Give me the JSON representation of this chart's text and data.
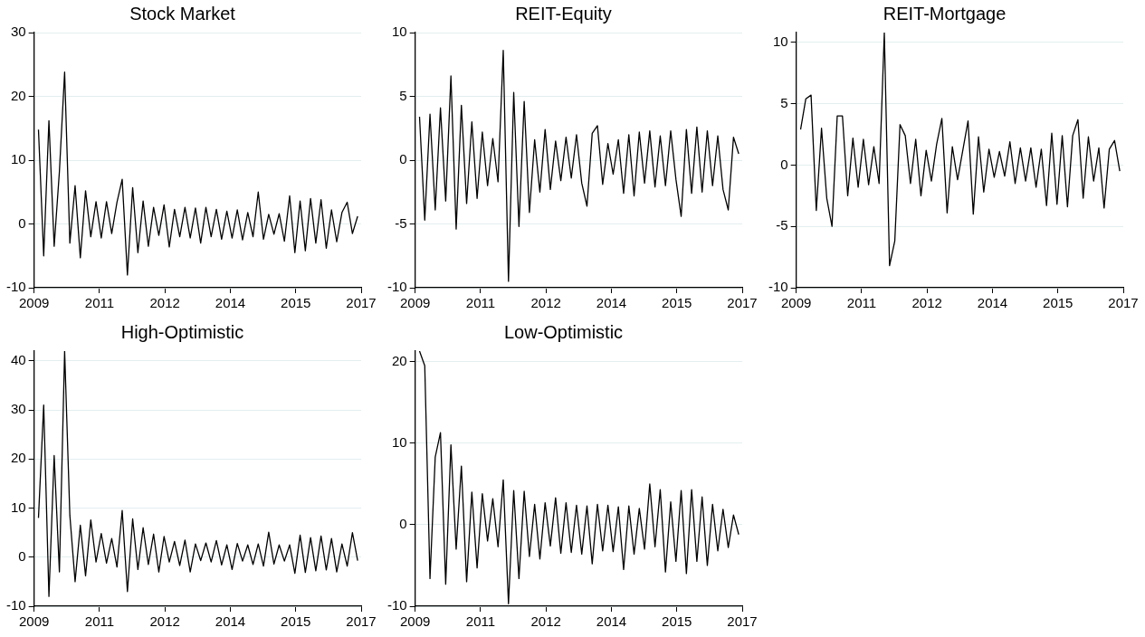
{
  "chart_data": [
    {
      "type": "line",
      "title": "Stock Market",
      "color": "#000000",
      "grid": "y",
      "xlim": [
        2009.2,
        2016.7
      ],
      "ylim": [
        -10,
        30
      ],
      "yticks": [
        -10,
        0,
        10,
        20,
        30
      ],
      "xticks": [
        {
          "value": 2009.2,
          "label": "2009"
        },
        {
          "value": 2010.7,
          "label": "2011"
        },
        {
          "value": 2012.2,
          "label": "2012"
        },
        {
          "value": 2013.7,
          "label": "2014"
        },
        {
          "value": 2015.2,
          "label": "2015"
        },
        {
          "value": 2016.7,
          "label": "2017"
        }
      ],
      "x": [
        2009.3,
        2009.42,
        2009.54,
        2009.66,
        2009.78,
        2009.9,
        2010.02,
        2010.14,
        2010.26,
        2010.38,
        2010.5,
        2010.62,
        2010.74,
        2010.86,
        2010.98,
        2011.1,
        2011.22,
        2011.34,
        2011.46,
        2011.58,
        2011.7,
        2011.82,
        2011.94,
        2012.06,
        2012.18,
        2012.3,
        2012.42,
        2012.54,
        2012.66,
        2012.78,
        2012.9,
        2013.02,
        2013.14,
        2013.26,
        2013.38,
        2013.5,
        2013.62,
        2013.74,
        2013.86,
        2013.98,
        2014.1,
        2014.22,
        2014.34,
        2014.46,
        2014.58,
        2014.7,
        2014.82,
        2014.94,
        2015.06,
        2015.18,
        2015.3,
        2015.42,
        2015.54,
        2015.66,
        2015.78,
        2015.9,
        2016.02,
        2016.14,
        2016.26,
        2016.38,
        2016.5,
        2016.62
      ],
      "values": [
        14.8,
        -5,
        16.2,
        -3.5,
        8.2,
        23.8,
        -3,
        6,
        -5.3,
        5.2,
        -2,
        3.5,
        -2.2,
        3.5,
        -1.5,
        3.4,
        7,
        -8,
        5.7,
        -4.5,
        3.6,
        -3.5,
        2.6,
        -1.8,
        3,
        -3.6,
        2.3,
        -2,
        2.6,
        -2.2,
        2.5,
        -3,
        2.6,
        -2,
        2.3,
        -2.4,
        2,
        -2.2,
        2.2,
        -2.5,
        1.8,
        -2,
        5,
        -2.4,
        1.5,
        -1.6,
        1.6,
        -2.7,
        4.4,
        -4.5,
        3.6,
        -4.2,
        4,
        -3,
        3.8,
        -3.8,
        2.2,
        -2.8,
        1.8,
        3.4,
        -1.5,
        1.2
      ]
    },
    {
      "type": "line",
      "title": "REIT-Equity",
      "color": "#000000",
      "grid": "y",
      "xlim": [
        2009.2,
        2016.7
      ],
      "ylim": [
        -10,
        10
      ],
      "yticks": [
        -10,
        -5,
        0,
        5,
        10
      ],
      "xticks": [
        {
          "value": 2009.2,
          "label": "2009"
        },
        {
          "value": 2010.7,
          "label": "2011"
        },
        {
          "value": 2012.2,
          "label": "2012"
        },
        {
          "value": 2013.7,
          "label": "2014"
        },
        {
          "value": 2015.2,
          "label": "2015"
        },
        {
          "value": 2016.7,
          "label": "2017"
        }
      ],
      "x": [
        2009.3,
        2009.42,
        2009.54,
        2009.66,
        2009.78,
        2009.9,
        2010.02,
        2010.14,
        2010.26,
        2010.38,
        2010.5,
        2010.62,
        2010.74,
        2010.86,
        2010.98,
        2011.1,
        2011.22,
        2011.34,
        2011.46,
        2011.58,
        2011.7,
        2011.82,
        2011.94,
        2012.06,
        2012.18,
        2012.3,
        2012.42,
        2012.54,
        2012.66,
        2012.78,
        2012.9,
        2013.02,
        2013.14,
        2013.26,
        2013.38,
        2013.5,
        2013.62,
        2013.74,
        2013.86,
        2013.98,
        2014.1,
        2014.22,
        2014.34,
        2014.46,
        2014.58,
        2014.7,
        2014.82,
        2014.94,
        2015.06,
        2015.18,
        2015.3,
        2015.42,
        2015.54,
        2015.66,
        2015.78,
        2015.9,
        2016.02,
        2016.14,
        2016.26,
        2016.38,
        2016.5,
        2016.62
      ],
      "values": [
        3.4,
        -4.7,
        3.6,
        -3.9,
        4.1,
        -3.2,
        6.6,
        -5.4,
        4.3,
        -3.4,
        3,
        -3,
        2.2,
        -2,
        1.7,
        -1.7,
        8.6,
        -9.5,
        5.3,
        -5.2,
        4.6,
        -4.1,
        1.6,
        -2.5,
        2.4,
        -2.3,
        1.5,
        -1.6,
        1.8,
        -1.4,
        2,
        -1.8,
        -3.6,
        2.1,
        2.7,
        -1.9,
        1.3,
        -1.1,
        1.6,
        -2.6,
        2,
        -2.8,
        2.2,
        -1.8,
        2.3,
        -2.1,
        1.9,
        -2,
        2.3,
        -1.5,
        -4.4,
        2.4,
        -2.6,
        2.6,
        -2.5,
        2.3,
        -2,
        1.9,
        -2.3,
        -3.9,
        1.8,
        0.5
      ]
    },
    {
      "type": "line",
      "title": "REIT-Mortgage",
      "color": "#000000",
      "grid": "y",
      "xlim": [
        2009.2,
        2016.7
      ],
      "ylim": [
        -10,
        10.8
      ],
      "yticks": [
        -10,
        -5,
        0,
        5,
        10
      ],
      "xticks": [
        {
          "value": 2009.2,
          "label": "2009"
        },
        {
          "value": 2010.7,
          "label": "2011"
        },
        {
          "value": 2012.2,
          "label": "2012"
        },
        {
          "value": 2013.7,
          "label": "2014"
        },
        {
          "value": 2015.2,
          "label": "2015"
        },
        {
          "value": 2016.7,
          "label": "2017"
        }
      ],
      "x": [
        2009.3,
        2009.42,
        2009.54,
        2009.66,
        2009.78,
        2009.9,
        2010.02,
        2010.14,
        2010.26,
        2010.38,
        2010.5,
        2010.62,
        2010.74,
        2010.86,
        2010.98,
        2011.1,
        2011.22,
        2011.34,
        2011.46,
        2011.58,
        2011.7,
        2011.82,
        2011.94,
        2012.06,
        2012.18,
        2012.3,
        2012.42,
        2012.54,
        2012.66,
        2012.78,
        2012.9,
        2013.02,
        2013.14,
        2013.26,
        2013.38,
        2013.5,
        2013.62,
        2013.74,
        2013.86,
        2013.98,
        2014.1,
        2014.22,
        2014.34,
        2014.46,
        2014.58,
        2014.7,
        2014.82,
        2014.94,
        2015.06,
        2015.18,
        2015.3,
        2015.42,
        2015.54,
        2015.66,
        2015.78,
        2015.9,
        2016.02,
        2016.14,
        2016.26,
        2016.38,
        2016.5,
        2016.62
      ],
      "values": [
        2.9,
        5.4,
        5.7,
        -3.7,
        3,
        -2.7,
        -5,
        4,
        4,
        -2.5,
        2.2,
        -1.8,
        2.1,
        -1.6,
        1.5,
        -1.5,
        10.8,
        -8.2,
        -6.2,
        3.3,
        2.4,
        -1.5,
        2.1,
        -2.5,
        1.2,
        -1.3,
        1.7,
        3.8,
        -3.9,
        1.5,
        -1.2,
        1.2,
        3.6,
        -4,
        2.3,
        -2.2,
        1.3,
        -1,
        1.1,
        -0.9,
        1.9,
        -1.5,
        1.4,
        -1.3,
        1.4,
        -1.8,
        1.3,
        -3.3,
        2.6,
        -3.2,
        2.4,
        -3.4,
        2.4,
        3.7,
        -2.7,
        2.3,
        -1.3,
        1.4,
        -3.5,
        1.3,
        2,
        -0.5
      ]
    },
    {
      "type": "line",
      "title": "High-Optimistic",
      "color": "#000000",
      "grid": "y",
      "xlim": [
        2009.2,
        2016.7
      ],
      "ylim": [
        -10,
        42
      ],
      "yticks": [
        -10,
        0,
        10,
        20,
        30,
        40
      ],
      "xticks": [
        {
          "value": 2009.2,
          "label": "2009"
        },
        {
          "value": 2010.7,
          "label": "2011"
        },
        {
          "value": 2012.2,
          "label": "2012"
        },
        {
          "value": 2013.7,
          "label": "2014"
        },
        {
          "value": 2015.2,
          "label": "2015"
        },
        {
          "value": 2016.7,
          "label": "2017"
        }
      ],
      "x": [
        2009.3,
        2009.42,
        2009.54,
        2009.66,
        2009.78,
        2009.9,
        2010.02,
        2010.14,
        2010.26,
        2010.38,
        2010.5,
        2010.62,
        2010.74,
        2010.86,
        2010.98,
        2011.1,
        2011.22,
        2011.34,
        2011.46,
        2011.58,
        2011.7,
        2011.82,
        2011.94,
        2012.06,
        2012.18,
        2012.3,
        2012.42,
        2012.54,
        2012.66,
        2012.78,
        2012.9,
        2013.02,
        2013.14,
        2013.26,
        2013.38,
        2013.5,
        2013.62,
        2013.74,
        2013.86,
        2013.98,
        2014.1,
        2014.22,
        2014.34,
        2014.46,
        2014.58,
        2014.7,
        2014.82,
        2014.94,
        2015.06,
        2015.18,
        2015.3,
        2015.42,
        2015.54,
        2015.66,
        2015.78,
        2015.9,
        2016.02,
        2016.14,
        2016.26,
        2016.38,
        2016.5,
        2016.62
      ],
      "values": [
        8,
        31,
        -8,
        20.7,
        -3,
        42,
        8.5,
        -5,
        6.5,
        -3.8,
        7.6,
        -1,
        4.8,
        -1.2,
        3.8,
        -2,
        9.5,
        -7,
        7.8,
        -2.5,
        6,
        -1.5,
        4.7,
        -3,
        4.2,
        -1,
        3.2,
        -1.7,
        3.5,
        -3,
        2.7,
        -0.7,
        2.9,
        -1,
        3.4,
        -1.6,
        2.5,
        -2.5,
        2.8,
        -0.8,
        2.5,
        -1.5,
        2.7,
        -1.8,
        5.1,
        -1.4,
        2.5,
        -0.8,
        2.5,
        -3.3,
        4.5,
        -3.1,
        4,
        -2.8,
        4.3,
        -2.6,
        3.8,
        -3,
        2.7,
        -1.8,
        5,
        -0.7
      ]
    },
    {
      "type": "line",
      "title": "Low-Optimistic",
      "color": "#000000",
      "grid": "y",
      "xlim": [
        2009.2,
        2016.7
      ],
      "ylim": [
        -10,
        21.3
      ],
      "yticks": [
        -10,
        0,
        10,
        20
      ],
      "xticks": [
        {
          "value": 2009.2,
          "label": "2009"
        },
        {
          "value": 2010.7,
          "label": "2011"
        },
        {
          "value": 2012.2,
          "label": "2012"
        },
        {
          "value": 2013.7,
          "label": "2014"
        },
        {
          "value": 2015.2,
          "label": "2015"
        },
        {
          "value": 2016.7,
          "label": "2017"
        }
      ],
      "x": [
        2009.3,
        2009.42,
        2009.54,
        2009.66,
        2009.78,
        2009.9,
        2010.02,
        2010.14,
        2010.26,
        2010.38,
        2010.5,
        2010.62,
        2010.74,
        2010.86,
        2010.98,
        2011.1,
        2011.22,
        2011.34,
        2011.46,
        2011.58,
        2011.7,
        2011.82,
        2011.94,
        2012.06,
        2012.18,
        2012.3,
        2012.42,
        2012.54,
        2012.66,
        2012.78,
        2012.9,
        2013.02,
        2013.14,
        2013.26,
        2013.38,
        2013.5,
        2013.62,
        2013.74,
        2013.86,
        2013.98,
        2014.1,
        2014.22,
        2014.34,
        2014.46,
        2014.58,
        2014.7,
        2014.82,
        2014.94,
        2015.06,
        2015.18,
        2015.3,
        2015.42,
        2015.54,
        2015.66,
        2015.78,
        2015.9,
        2016.02,
        2016.14,
        2016.26,
        2016.38,
        2016.5,
        2016.62
      ],
      "values": [
        21.3,
        19.5,
        -6.6,
        8.3,
        11.3,
        -7.3,
        9.8,
        -3,
        7.2,
        -7,
        4,
        -5.3,
        3.8,
        -2,
        3.2,
        -2.7,
        5.5,
        -9.7,
        4.2,
        -6.6,
        4.1,
        -3.9,
        2.5,
        -4.2,
        2.7,
        -2.6,
        3.3,
        -3.5,
        2.7,
        -3.4,
        2.4,
        -3.6,
        2.3,
        -4.8,
        2.5,
        -3.2,
        2.4,
        -3.3,
        2.2,
        -5.5,
        2.3,
        -3.6,
        2,
        -3,
        5,
        -2.7,
        4.3,
        -5.8,
        2.8,
        -4.5,
        4.2,
        -6,
        4.3,
        -4.5,
        3.4,
        -5,
        2.5,
        -3.2,
        1.9,
        -2.8,
        1.2,
        -1.2
      ]
    }
  ]
}
